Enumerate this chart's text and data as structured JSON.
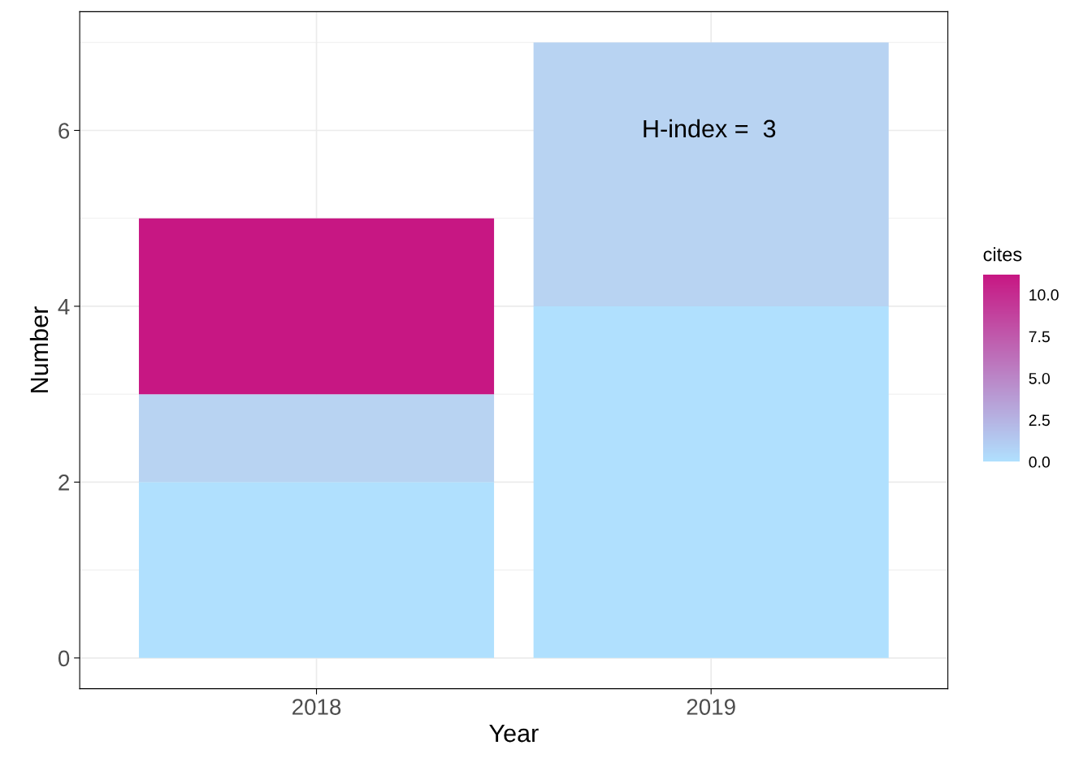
{
  "chart_data": {
    "type": "bar",
    "stacked": true,
    "categories": [
      "2018",
      "2019"
    ],
    "series": [
      {
        "color": "#b0e0fe",
        "values": [
          2,
          4
        ]
      },
      {
        "color": "#b8d3f2",
        "values": [
          1,
          3
        ]
      },
      {
        "color": "#c71783",
        "values": [
          2,
          null
        ]
      }
    ],
    "xlabel": "Year",
    "ylabel": "Number",
    "ylim": [
      -0.35,
      7.35
    ],
    "yticks": [
      0,
      2,
      4,
      6
    ],
    "grid": true,
    "clabel": "cites",
    "clim": [
      0,
      11.2
    ],
    "cticks": [
      {
        "value": 0,
        "label": "0.0"
      },
      {
        "value": 2.5,
        "label": "2.5"
      },
      {
        "value": 5,
        "label": "5.0"
      },
      {
        "value": 7.5,
        "label": "7.5"
      },
      {
        "value": 10,
        "label": "10.0"
      }
    ],
    "annotations": [
      "H-index =  3"
    ]
  }
}
